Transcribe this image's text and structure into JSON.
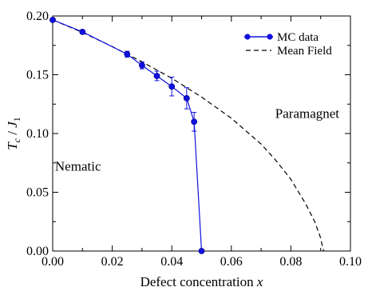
{
  "chart_data": {
    "type": "line",
    "xlabel_text": "Defect concentration",
    "xlabel_var": "x",
    "ylabel_T": "T",
    "ylabel_c": "c",
    "ylabel_sep": " / ",
    "ylabel_J": "J",
    "ylabel_1": "1",
    "xlim": [
      0.0,
      0.1
    ],
    "ylim": [
      0.0,
      0.2
    ],
    "x_ticks": [
      "0.00",
      "0.02",
      "0.04",
      "0.06",
      "0.08",
      "0.10"
    ],
    "y_ticks": [
      "0.00",
      "0.05",
      "0.10",
      "0.15",
      "0.20"
    ],
    "x_tick_values": [
      0.0,
      0.02,
      0.04,
      0.06,
      0.08,
      0.1
    ],
    "y_tick_values": [
      0.0,
      0.05,
      0.1,
      0.15,
      0.2
    ],
    "legend_position": "top-right",
    "grid": false,
    "series": [
      {
        "name": "MC data",
        "style": "line-markers",
        "color": "#1010e0",
        "x": [
          0.0,
          0.01,
          0.025,
          0.03,
          0.035,
          0.04,
          0.045,
          0.0475,
          0.05
        ],
        "y": [
          0.1967,
          0.1865,
          0.1675,
          0.158,
          0.149,
          0.14,
          0.13,
          0.11,
          0.0
        ],
        "err": [
          0.0005,
          0.001,
          0.0025,
          0.003,
          0.004,
          0.008,
          0.009,
          0.008,
          0.0
        ]
      },
      {
        "name": "Mean Field",
        "style": "dashed",
        "color": "#000000",
        "x": [
          0.0,
          0.01,
          0.02,
          0.03,
          0.04,
          0.05,
          0.06,
          0.07,
          0.075,
          0.08,
          0.085,
          0.088,
          0.09,
          0.0905,
          0.091
        ],
        "y": [
          0.1967,
          0.186,
          0.174,
          0.161,
          0.147,
          0.131,
          0.113,
          0.091,
          0.077,
          0.061,
          0.04,
          0.025,
          0.011,
          0.005,
          0.0
        ]
      }
    ],
    "annotations": [
      {
        "text": "Paramagnet",
        "x": 0.0855,
        "y": 0.1175
      },
      {
        "text": "Nematic",
        "x": 0.0085,
        "y": 0.0725
      }
    ]
  }
}
